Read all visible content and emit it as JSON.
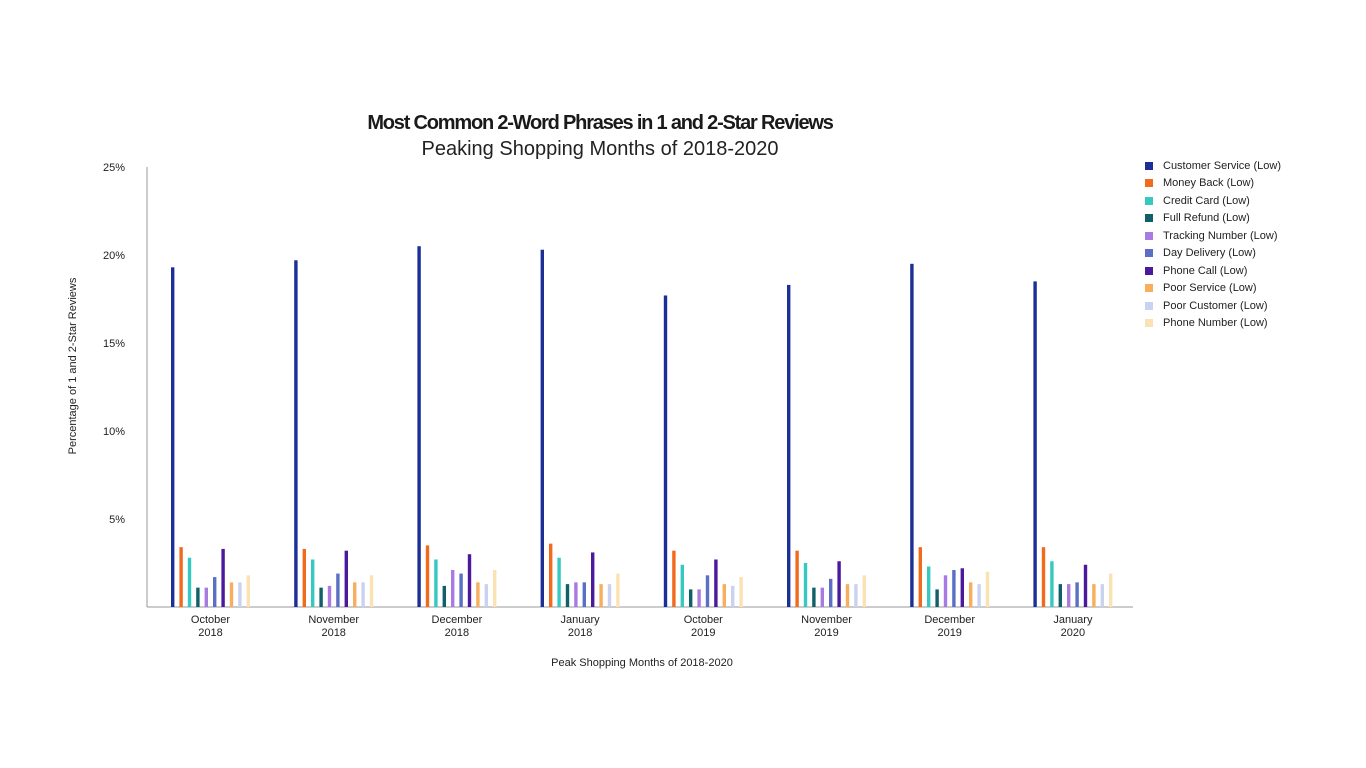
{
  "chart_data": {
    "type": "bar",
    "title": "Most Common 2-Word Phrases in 1 and 2-Star Reviews",
    "subtitle": "Peaking Shopping Months of 2018-2020",
    "xlabel": "Peak Shopping Months of 2018-2020",
    "ylabel": "Percentage of 1 and 2-Star Reviews",
    "ylim": [
      0,
      25
    ],
    "yticks": [
      {
        "value": 5,
        "label": "5%"
      },
      {
        "value": 10,
        "label": "10%"
      },
      {
        "value": 15,
        "label": "15%"
      },
      {
        "value": 20,
        "label": "20%"
      },
      {
        "value": 25,
        "label": "25%"
      }
    ],
    "categories": [
      [
        "October",
        "2018"
      ],
      [
        "November",
        "2018"
      ],
      [
        "December",
        "2018"
      ],
      [
        "January",
        "2018"
      ],
      [
        "October",
        "2019"
      ],
      [
        "November",
        "2019"
      ],
      [
        "December",
        "2019"
      ],
      [
        "January",
        "2020"
      ]
    ],
    "legend_position": "right",
    "grid": false,
    "series": [
      {
        "name": "Customer Service (Low)",
        "color": "#1b2f96",
        "values": [
          19.3,
          19.7,
          20.5,
          20.3,
          17.7,
          18.3,
          19.5,
          18.5
        ]
      },
      {
        "name": "Money Back (Low)",
        "color": "#f26b1d",
        "values": [
          3.4,
          3.3,
          3.5,
          3.6,
          3.2,
          3.2,
          3.4,
          3.4
        ]
      },
      {
        "name": "Credit Card (Low)",
        "color": "#35c9c1",
        "values": [
          2.8,
          2.7,
          2.7,
          2.8,
          2.4,
          2.5,
          2.3,
          2.6
        ]
      },
      {
        "name": "Full Refund (Low)",
        "color": "#0f6168",
        "values": [
          1.1,
          1.1,
          1.2,
          1.3,
          1.0,
          1.1,
          1.0,
          1.3
        ]
      },
      {
        "name": "Tracking Number (Low)",
        "color": "#a97ae2",
        "values": [
          1.1,
          1.2,
          2.1,
          1.4,
          1.0,
          1.1,
          1.8,
          1.3
        ]
      },
      {
        "name": "Day Delivery (Low)",
        "color": "#5b6fc4",
        "values": [
          1.7,
          1.9,
          1.9,
          1.4,
          1.8,
          1.6,
          2.1,
          1.4
        ]
      },
      {
        "name": "Phone Call (Low)",
        "color": "#4b1a9c",
        "values": [
          3.3,
          3.2,
          3.0,
          3.1,
          2.7,
          2.6,
          2.2,
          2.4
        ]
      },
      {
        "name": "Poor Service (Low)",
        "color": "#f7ae5d",
        "values": [
          1.4,
          1.4,
          1.4,
          1.3,
          1.3,
          1.3,
          1.4,
          1.3
        ]
      },
      {
        "name": "Poor Customer (Low)",
        "color": "#c9d3f1",
        "values": [
          1.4,
          1.4,
          1.3,
          1.3,
          1.2,
          1.3,
          1.3,
          1.3
        ]
      },
      {
        "name": "Phone Number (Low)",
        "color": "#fbe2b2",
        "values": [
          1.8,
          1.8,
          2.1,
          1.9,
          1.7,
          1.8,
          2.0,
          1.9
        ]
      }
    ]
  }
}
